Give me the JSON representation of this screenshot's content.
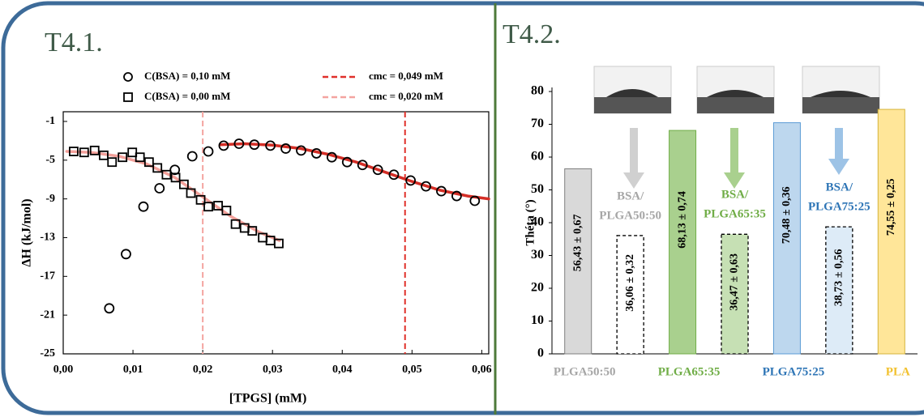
{
  "chart_data": [
    {
      "type": "scatter",
      "title": "T4.1.",
      "xlabel": "[TPGS] (mM)",
      "ylabel": "ΔH (kJ/mol)",
      "xlim": [
        0,
        0.061
      ],
      "ylim": [
        -25,
        0
      ],
      "xticks": [
        {
          "value": 0,
          "label": "0,00"
        },
        {
          "value": 0.01,
          "label": "0,01"
        },
        {
          "value": 0.02,
          "label": "0,02"
        },
        {
          "value": 0.03,
          "label": "0,03"
        },
        {
          "value": 0.04,
          "label": "0,04"
        },
        {
          "value": 0.05,
          "label": "0,05"
        },
        {
          "value": 0.06,
          "label": "0,06"
        }
      ],
      "yticks": [
        -25,
        -21,
        -17,
        -13,
        -9,
        -5,
        -1
      ],
      "series": [
        {
          "name": "C(BSA) = 0,10 mM",
          "marker": "circle",
          "color": "#000000",
          "x": [
            0.0066,
            0.009,
            0.0115,
            0.0138,
            0.016,
            0.0185,
            0.0208,
            0.023,
            0.0252,
            0.0274,
            0.0297,
            0.0319,
            0.0341,
            0.0363,
            0.0385,
            0.0407,
            0.0429,
            0.0451,
            0.0474,
            0.0498,
            0.052,
            0.0542,
            0.0564,
            0.059
          ],
          "values": [
            -20.3,
            -14.7,
            -9.8,
            -7.9,
            -6.0,
            -4.6,
            -4.1,
            -3.5,
            -3.3,
            -3.4,
            -3.5,
            -3.8,
            -4.0,
            -4.3,
            -4.7,
            -5.2,
            -5.5,
            -6.0,
            -6.5,
            -7.1,
            -7.7,
            -8.2,
            -8.7,
            -9.2
          ]
        },
        {
          "name": "C(BSA) = 0,00 mM",
          "marker": "square",
          "color": "#000000",
          "x": [
            0.0015,
            0.003,
            0.0045,
            0.0058,
            0.007,
            0.0085,
            0.0099,
            0.011,
            0.0123,
            0.0135,
            0.0148,
            0.0161,
            0.0173,
            0.0183,
            0.0197,
            0.0208,
            0.0222,
            0.0234,
            0.0247,
            0.026,
            0.0271,
            0.0286,
            0.0297,
            0.0309
          ],
          "values": [
            -4.1,
            -4.2,
            -4.0,
            -4.5,
            -5.2,
            -4.7,
            -4.2,
            -4.7,
            -5.2,
            -5.8,
            -6.5,
            -6.8,
            -7.5,
            -8.4,
            -9.1,
            -9.8,
            -9.7,
            -10.2,
            -11.6,
            -12.0,
            -12.3,
            -13.0,
            -13.3,
            -13.6
          ]
        }
      ],
      "fits": [
        {
          "color": "#d42e26",
          "x": [
            0.0225,
            0.026,
            0.03,
            0.034,
            0.038,
            0.042,
            0.046,
            0.05,
            0.054,
            0.058,
            0.061
          ],
          "values": [
            -3.4,
            -3.3,
            -3.45,
            -3.8,
            -4.4,
            -5.2,
            -6.2,
            -7.2,
            -8.1,
            -8.7,
            -9.0
          ]
        },
        {
          "color": "#f3a09a",
          "x": [
            0.0005,
            0.004,
            0.008,
            0.012,
            0.016,
            0.02,
            0.024,
            0.028,
            0.031
          ],
          "values": [
            -4.1,
            -4.2,
            -4.6,
            -5.4,
            -6.8,
            -8.8,
            -10.8,
            -12.4,
            -13.3
          ]
        }
      ],
      "cmc_lines": [
        {
          "name": "cmc = 0,049 mM",
          "value": 0.049,
          "color": "#e0302a"
        },
        {
          "name": "cmc = 0,020 mM",
          "value": 0.02,
          "color": "#f4a4a0"
        }
      ]
    },
    {
      "type": "bar",
      "title": "T4.2.",
      "ylabel": "Théta (°)",
      "ylim": [
        0,
        80
      ],
      "yticks": [
        0,
        10,
        20,
        30,
        40,
        50,
        60,
        70,
        80
      ],
      "categories": [
        "PLGA50:50",
        [
          "BSA/",
          "PLGA50:50"
        ],
        "PLGA65:35",
        [
          "BSA/",
          "PLGA65:35"
        ],
        "PLGA75:25",
        [
          "BSA/",
          "PLGA75:25"
        ],
        "PLA"
      ],
      "values": [
        56.43,
        36.06,
        68.13,
        36.47,
        70.48,
        38.73,
        74.55
      ],
      "value_labels": [
        "56,43 ± 0,67",
        "36,06 ± 0,32",
        "68,13 ± 0,74",
        "36,47 ± 0,63",
        "70,48 ± 0,36",
        "38,73 ± 0,56",
        "74,55 ± 0,25"
      ],
      "colors": [
        "#d9d9d9",
        "#ffffff",
        "#a9d08e",
        "#c6e0b4",
        "#bdd7ee",
        "#ddebf7",
        "#ffe699"
      ],
      "edge_colors": [
        "#7f7f7f",
        "#000000",
        "#70ad47",
        "#000000",
        "#5b9bd5",
        "#000000",
        "#d6b43a"
      ],
      "dashed": [
        false,
        true,
        false,
        true,
        false,
        true,
        false
      ],
      "label_colors": [
        "#a6a6a6",
        "#a6a6a6",
        "#70ad47",
        "#70ad47",
        "#2e75b6",
        "#2e75b6",
        "#f2c12e"
      ]
    }
  ]
}
